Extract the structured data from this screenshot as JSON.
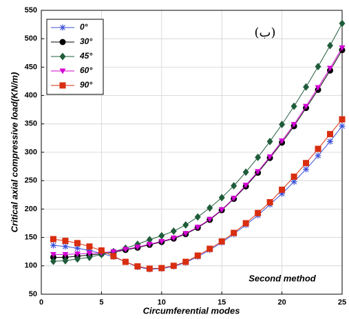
{
  "chart_data": {
    "type": "line",
    "xlabel": "Circumferential modes",
    "ylabel": "Critical axial compressive load(KN/m)",
    "annotations": [
      "(ب)",
      "Second method"
    ],
    "x": [
      1,
      2,
      3,
      4,
      5,
      6,
      7,
      8,
      9,
      10,
      11,
      12,
      13,
      14,
      15,
      16,
      17,
      18,
      19,
      20,
      21,
      22,
      23,
      24,
      25
    ],
    "xlim": [
      0,
      25
    ],
    "xticks": [
      0,
      5,
      10,
      15,
      20,
      25
    ],
    "ylim": [
      50,
      550
    ],
    "yticks": [
      50,
      100,
      150,
      200,
      250,
      300,
      350,
      400,
      450,
      500,
      550
    ],
    "grid": true,
    "legend": "upper-left",
    "series": [
      {
        "name": "0°",
        "color": "#3b4fd8",
        "marker": "star",
        "values": [
          136,
          134,
          131,
          127,
          122,
          116,
          107,
          98,
          94,
          95,
          99,
          106,
          116,
          128,
          141,
          156,
          172,
          189,
          208,
          227,
          248,
          270,
          294,
          319,
          346
        ]
      },
      {
        "name": "30°",
        "color": "#000000",
        "marker": "circle",
        "values": [
          115,
          115,
          117,
          119,
          121,
          124,
          128,
          132,
          137,
          142,
          148,
          156,
          167,
          181,
          198,
          218,
          240,
          264,
          290,
          317,
          346,
          378,
          410,
          444,
          480
        ]
      },
      {
        "name": "45°",
        "color": "#1f5c3a",
        "marker": "diamond",
        "values": [
          108,
          109,
          112,
          115,
          120,
          125,
          131,
          138,
          146,
          153,
          161,
          172,
          186,
          202,
          220,
          241,
          265,
          291,
          319,
          349,
          381,
          415,
          451,
          488,
          527
        ]
      },
      {
        "name": "60°",
        "color": "#d400d4",
        "marker": "triangle",
        "values": [
          120,
          120,
          121,
          122,
          123,
          125,
          129,
          133,
          138,
          143,
          149,
          157,
          168,
          182,
          199,
          219,
          242,
          266,
          292,
          320,
          349,
          381,
          414,
          448,
          484
        ]
      },
      {
        "name": "90°",
        "color": "#d92e0f",
        "marker": "square",
        "values": [
          147,
          144,
          140,
          134,
          127,
          117,
          107,
          99,
          95,
          96,
          100,
          107,
          118,
          130,
          143,
          158,
          175,
          193,
          212,
          234,
          257,
          281,
          306,
          332,
          358
        ]
      }
    ]
  }
}
